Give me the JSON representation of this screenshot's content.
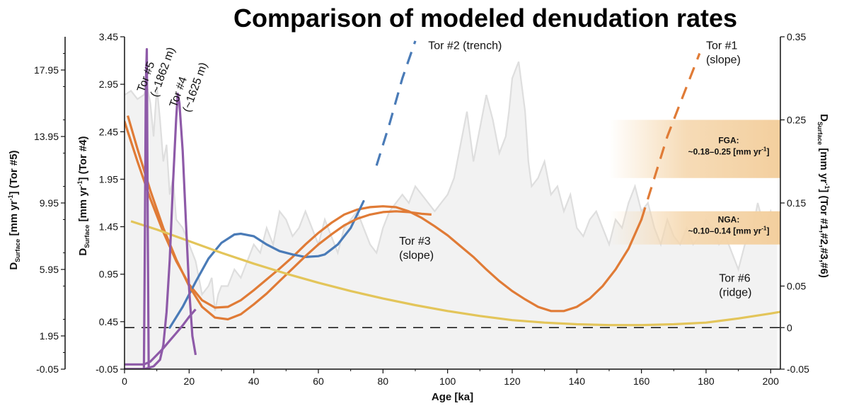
{
  "chart_data": {
    "type": "line",
    "title": "Comparison of modeled denudation rates",
    "xlabel": "Age [ka]",
    "xlim": [
      0,
      203
    ],
    "x_ticks": [
      "0",
      "20",
      "40",
      "60",
      "80",
      "100",
      "120",
      "140",
      "160",
      "180",
      "200"
    ],
    "axes": {
      "left_outer": {
        "label_main": "D",
        "label_sub": "Surface",
        "label_rest": " [mm yr",
        "label_sup": "-1",
        "label_tail": "] (Tor #5)",
        "range": [
          -0.05,
          19.95
        ],
        "ticks": [
          "-0.05",
          "1.95",
          "5.95",
          "9.95",
          "13.95",
          "17.95"
        ]
      },
      "left_inner": {
        "label_main": "D",
        "label_sub": "Surface",
        "label_rest": " [mm yr",
        "label_sup": "-1",
        "label_tail": "] (Tor #4)",
        "range": [
          -0.05,
          3.45
        ],
        "ticks": [
          "-0.05",
          "0.45",
          "0.95",
          "1.45",
          "1.95",
          "2.45",
          "2.95",
          "3.45"
        ]
      },
      "right": {
        "label_main": "D",
        "label_sub": "Surface",
        "label_rest": " [mm yr",
        "label_sup": "-1",
        "label_tail": "] (Tor #1,#2,#3,#6)",
        "range": [
          -0.05,
          0.35
        ],
        "ticks": [
          "-0.05",
          "0",
          "0.05",
          "0.15",
          "0.25",
          "0.35"
        ]
      }
    },
    "zero_reference": {
      "axis": "right",
      "y": 0,
      "style": "dashed"
    },
    "bands": [
      {
        "label_line1": "FGA:",
        "label_line2": "~0.18–0.25 [mm yr",
        "label_sup": "-1",
        "label_close": "]",
        "range_right_axis": [
          0.18,
          0.25
        ],
        "x_start": 150,
        "color": "#f5d7ae"
      },
      {
        "label_line1": "NGA:",
        "label_line2": "~0.10–0.14 [mm yr",
        "label_sup": "-1",
        "label_close": "]",
        "range_right_axis": [
          0.1,
          0.14
        ],
        "x_start": 150,
        "color": "#f5d7ae"
      }
    ],
    "background_proxy": {
      "axis": "right",
      "color": "#dedede",
      "x": [
        0,
        2,
        4,
        6,
        7,
        8,
        9,
        10,
        11,
        12,
        13,
        14,
        15,
        16,
        18,
        20,
        22,
        24,
        26,
        27,
        28,
        29,
        30,
        32,
        34,
        36,
        38,
        40,
        42,
        44,
        46,
        48,
        50,
        52,
        54,
        56,
        58,
        60,
        62,
        64,
        66,
        68,
        70,
        72,
        74,
        76,
        78,
        80,
        82,
        84,
        86,
        88,
        90,
        92,
        94,
        96,
        98,
        100,
        102,
        104,
        106,
        108,
        110,
        112,
        114,
        116,
        118,
        119,
        120,
        121,
        122,
        123,
        124,
        125,
        126,
        128,
        130,
        132,
        134,
        136,
        138,
        140,
        142,
        144,
        146,
        148,
        150,
        152,
        154,
        156,
        158,
        160,
        162,
        164,
        166,
        168,
        170,
        172,
        174,
        176,
        178,
        180,
        182,
        184,
        186,
        188,
        190,
        192,
        194,
        196,
        198,
        200,
        202
      ],
      "y": [
        0.28,
        0.285,
        0.275,
        0.28,
        0.29,
        0.27,
        0.23,
        0.29,
        0.25,
        0.2,
        0.22,
        0.16,
        0.18,
        0.13,
        0.12,
        0.1,
        0.08,
        0.04,
        0.05,
        0.06,
        0.02,
        0.04,
        0.05,
        0.05,
        0.07,
        0.06,
        0.08,
        0.1,
        0.09,
        0.12,
        0.1,
        0.14,
        0.13,
        0.11,
        0.12,
        0.14,
        0.12,
        0.1,
        0.13,
        0.11,
        0.09,
        0.12,
        0.13,
        0.14,
        0.12,
        0.1,
        0.09,
        0.12,
        0.14,
        0.15,
        0.16,
        0.15,
        0.17,
        0.16,
        0.15,
        0.14,
        0.15,
        0.16,
        0.18,
        0.22,
        0.26,
        0.2,
        0.24,
        0.28,
        0.25,
        0.21,
        0.23,
        0.26,
        0.3,
        0.31,
        0.32,
        0.29,
        0.26,
        0.2,
        0.17,
        0.18,
        0.2,
        0.16,
        0.17,
        0.14,
        0.16,
        0.12,
        0.11,
        0.13,
        0.14,
        0.12,
        0.1,
        0.13,
        0.12,
        0.15,
        0.17,
        0.14,
        0.15,
        0.12,
        0.1,
        0.13,
        0.11,
        0.1,
        0.12,
        0.1,
        0.11,
        0.13,
        0.12,
        0.1,
        0.11,
        0.09,
        0.07,
        0.1,
        0.11,
        0.15,
        0.12,
        0.14,
        0.11
      ]
    },
    "series": [
      {
        "name": "Tor #1",
        "axis": "right",
        "color": "#e07b36",
        "dashed_segment": [
          160,
          178
        ],
        "x": [
          0,
          4,
          8,
          12,
          16,
          20,
          24,
          28,
          32,
          36,
          40,
          44,
          48,
          52,
          56,
          60,
          64,
          68,
          72,
          76,
          80,
          84,
          88,
          92,
          96,
          100,
          104,
          108,
          112,
          116,
          120,
          124,
          128,
          132,
          136,
          140,
          144,
          148,
          152,
          156,
          160,
          164,
          168,
          172,
          176,
          178
        ],
        "y": [
          0.248,
          0.2,
          0.155,
          0.115,
          0.08,
          0.052,
          0.033,
          0.024,
          0.025,
          0.033,
          0.045,
          0.058,
          0.071,
          0.085,
          0.1,
          0.114,
          0.126,
          0.136,
          0.142,
          0.145,
          0.146,
          0.145,
          0.14,
          0.132,
          0.122,
          0.111,
          0.098,
          0.085,
          0.07,
          0.056,
          0.044,
          0.034,
          0.025,
          0.02,
          0.02,
          0.025,
          0.035,
          0.05,
          0.07,
          0.095,
          0.13,
          0.18,
          0.23,
          0.27,
          0.31,
          0.33
        ]
      },
      {
        "name": "Tor #2 (trench)",
        "axis": "right",
        "color": "#4a7bb7",
        "dashed_segment": [
          75,
          90
        ],
        "x": [
          14,
          18,
          22,
          26,
          30,
          34,
          36,
          40,
          44,
          48,
          52,
          56,
          60,
          62,
          66,
          70,
          74,
          78,
          82,
          86,
          90
        ],
        "y": [
          0.0,
          0.025,
          0.055,
          0.083,
          0.102,
          0.112,
          0.113,
          0.11,
          0.1,
          0.092,
          0.088,
          0.085,
          0.086,
          0.088,
          0.1,
          0.12,
          0.152,
          0.195,
          0.245,
          0.3,
          0.345
        ]
      },
      {
        "name": "Tor #3",
        "axis": "right",
        "color": "#e07b36",
        "x": [
          1,
          4,
          8,
          12,
          16,
          20,
          24,
          28,
          32,
          36,
          40,
          44,
          48,
          52,
          56,
          60,
          64,
          68,
          72,
          76,
          80,
          84,
          88,
          92,
          95
        ],
        "y": [
          0.255,
          0.215,
          0.165,
          0.12,
          0.082,
          0.05,
          0.025,
          0.012,
          0.01,
          0.016,
          0.028,
          0.041,
          0.056,
          0.071,
          0.086,
          0.1,
          0.112,
          0.123,
          0.131,
          0.136,
          0.139,
          0.14,
          0.139,
          0.137,
          0.136
        ]
      },
      {
        "name": "Tor #6 (ridge)",
        "axis": "right",
        "color": "#e3c55a",
        "x": [
          2,
          10,
          20,
          30,
          40,
          50,
          60,
          70,
          80,
          90,
          100,
          110,
          120,
          130,
          140,
          150,
          160,
          170,
          180,
          190,
          200,
          203
        ],
        "y": [
          0.128,
          0.118,
          0.104,
          0.09,
          0.077,
          0.065,
          0.054,
          0.044,
          0.035,
          0.027,
          0.02,
          0.014,
          0.009,
          0.006,
          0.004,
          0.003,
          0.003,
          0.004,
          0.006,
          0.011,
          0.017,
          0.019
        ]
      },
      {
        "name": "Tor #4 (~1625 m)",
        "axis": "left_inner",
        "color": "#8e5aa8",
        "x": [
          0,
          6,
          9,
          11,
          12,
          13,
          14,
          15,
          16,
          16.5,
          17,
          18,
          19,
          20,
          21,
          22
        ],
        "y": [
          -0.05,
          -0.05,
          -0.02,
          0.05,
          0.2,
          0.55,
          1.1,
          1.9,
          2.6,
          2.85,
          2.75,
          2.25,
          1.5,
          0.8,
          0.3,
          0.1
        ]
      },
      {
        "name": "Tor #4 (~1625 m) lower",
        "axis": "left_inner",
        "color": "#8e5aa8",
        "x": [
          0,
          6,
          8,
          10,
          12,
          14,
          16,
          18,
          20,
          22
        ],
        "y": [
          0.0,
          0.0,
          0.03,
          0.1,
          0.17,
          0.25,
          0.33,
          0.41,
          0.5,
          0.58
        ]
      },
      {
        "name": "Tor #5 (~1862 m)",
        "axis": "left_outer",
        "color": "#8e5aa8",
        "x": [
          0,
          6,
          6.3,
          6.6,
          6.9,
          7.2,
          7.5,
          8
        ],
        "y": [
          -0.05,
          -0.05,
          8,
          17,
          19.2,
          8,
          -0.05,
          -0.05
        ]
      }
    ],
    "annotations": [
      {
        "lines": [
          "Tor #5",
          "(~1862 m)"
        ],
        "x": 6,
        "y_inner": 2.86,
        "rotate": -70
      },
      {
        "lines": [
          "Tor #4",
          "(~1625 m)"
        ],
        "x": 16,
        "y_inner": 2.7,
        "rotate": -70
      },
      {
        "lines": [
          "Tor #2 (trench)"
        ],
        "x": 94,
        "y_right": 0.335
      },
      {
        "lines": [
          "Tor #1",
          "(slope)"
        ],
        "x": 180,
        "y_right": 0.335
      },
      {
        "lines": [
          "Tor #3",
          "(slope)"
        ],
        "x": 85,
        "y_right": 0.1
      },
      {
        "lines": [
          "Tor #6",
          "(ridge)"
        ],
        "x": 184,
        "y_right": 0.055
      }
    ]
  }
}
